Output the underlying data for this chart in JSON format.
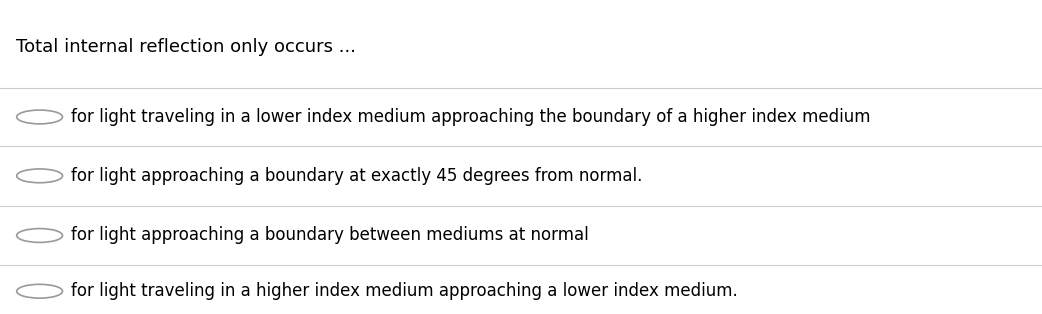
{
  "title": "Total internal reflection only occurs ...",
  "options": [
    "for light traveling in a lower index medium approaching the boundary of a higher index medium",
    "for light approaching a boundary at exactly 45 degrees from normal.",
    "for light approaching a boundary between mediums at normal",
    "for light traveling in a higher index medium approaching a lower index medium."
  ],
  "background_color": "#ffffff",
  "text_color": "#000000",
  "line_color": "#cccccc",
  "title_fontsize": 13,
  "option_fontsize": 12,
  "circle_color": "#ffffff",
  "circle_edge_color": "#999999"
}
